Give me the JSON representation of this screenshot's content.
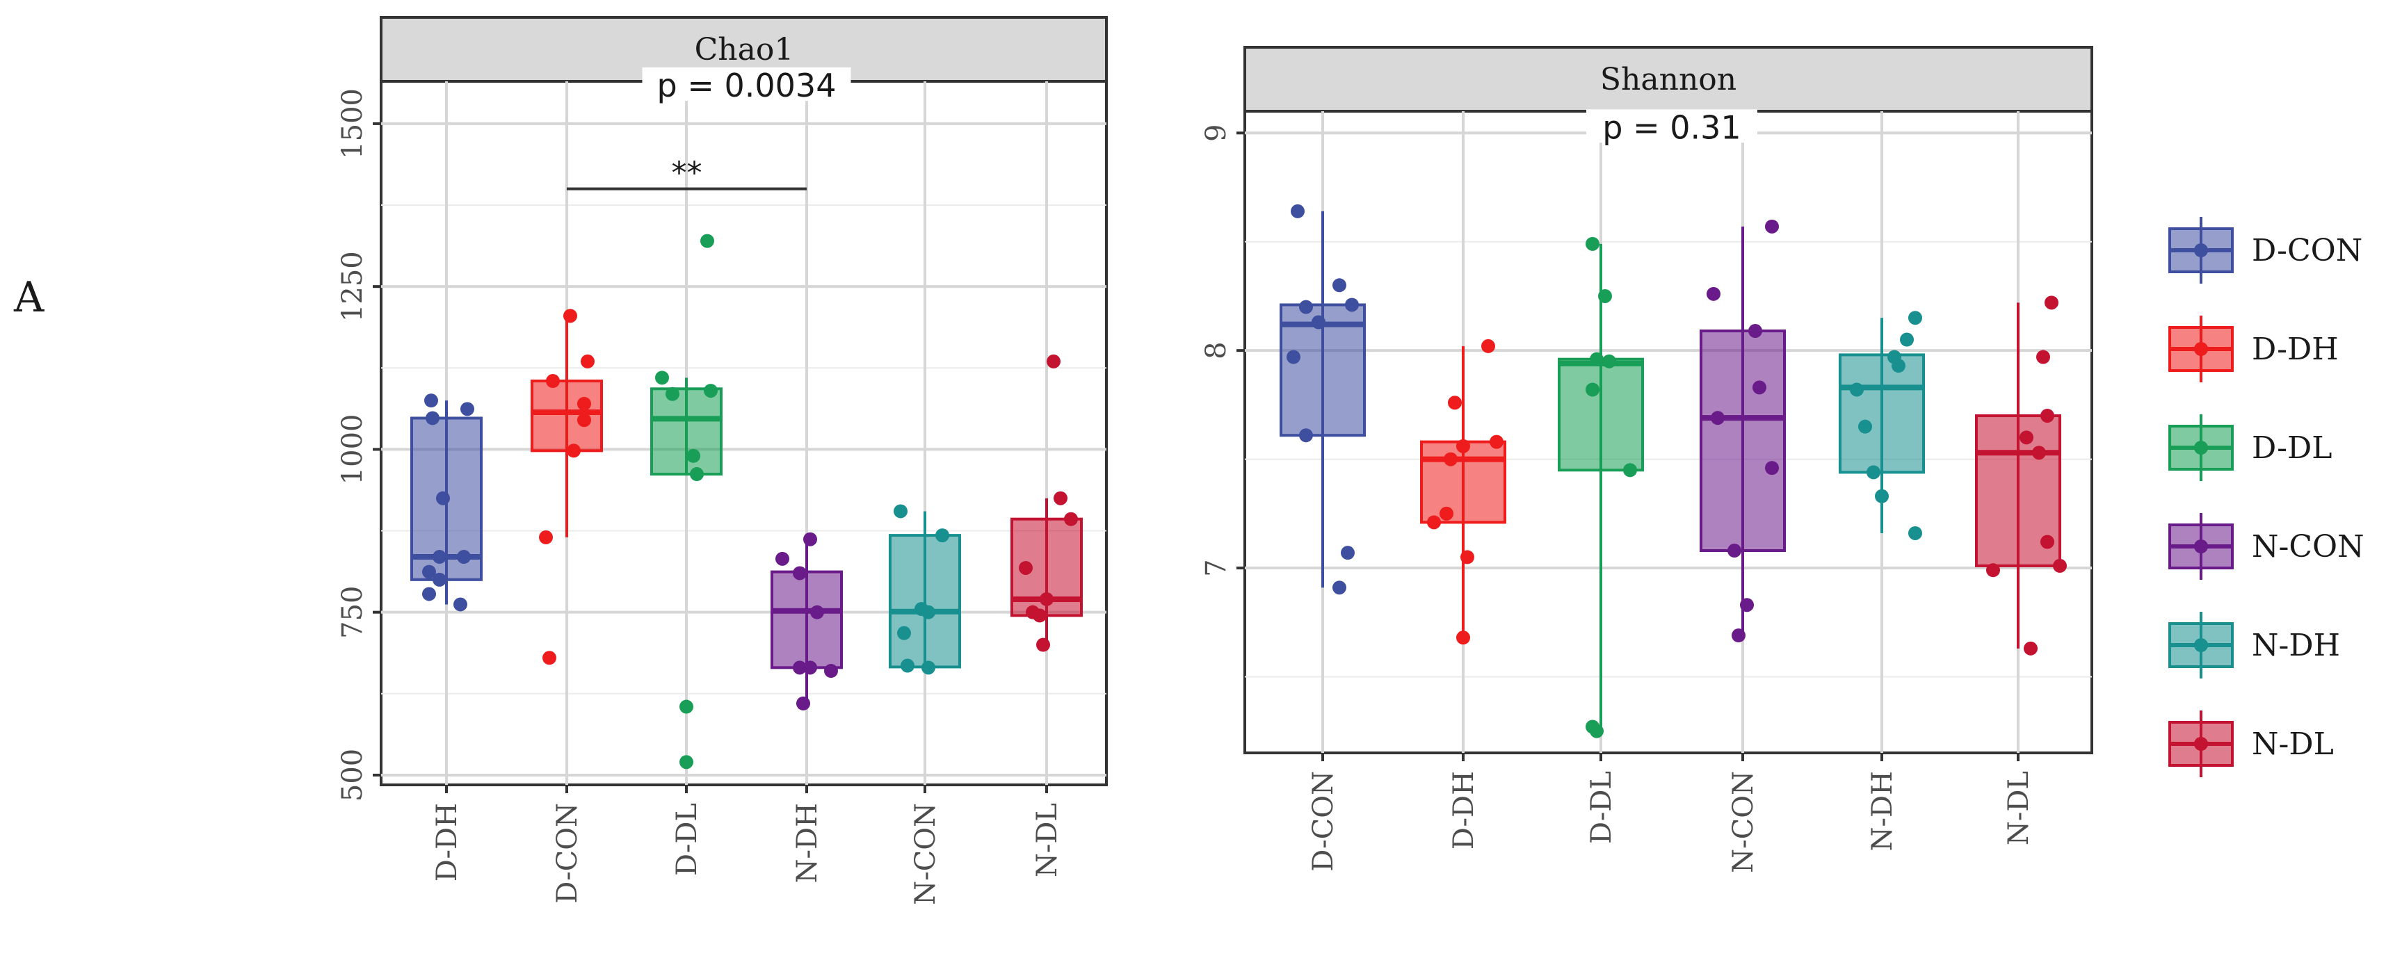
{
  "figure": {
    "panel_label": "A",
    "colors": {
      "D-CON": "#3f4fa0",
      "D-DH": "#ee1c1c",
      "D-DL": "#189e56",
      "N-CON": "#6a1b8a",
      "N-DH": "#17908f",
      "N-DL": "#c41231"
    }
  },
  "chart_data": [
    {
      "type": "boxplot",
      "title": "Chao1",
      "categories": [
        "D-DH",
        "D-CON",
        "D-DL",
        "N-DH",
        "N-CON",
        "N-DL"
      ],
      "category_groups": [
        "D-CON",
        "D-DH",
        "D-DL",
        "N-CON",
        "N-DH",
        "N-DL"
      ],
      "ylim": [
        485,
        1565
      ],
      "yticks": [
        500,
        750,
        1000,
        1250,
        1500
      ],
      "ytick_labels": [
        "500",
        "750",
        "1000",
        "1250",
        "1500"
      ],
      "minor_gridlines": [
        625,
        875,
        1125,
        1375
      ],
      "grid": true,
      "p_value_label": "p = 0.0034",
      "p_value_y": 1550,
      "significance": {
        "from": "D-CON",
        "to": "N-DH",
        "label": "**",
        "y": 1400
      },
      "boxes": [
        {
          "q1": 800,
          "median": 835,
          "q3": 1048,
          "whisker_low": 762,
          "whisker_high": 1075
        },
        {
          "q1": 998,
          "median": 1057,
          "q3": 1105,
          "whisker_low": 865,
          "whisker_high": 1205
        },
        {
          "q1": 962,
          "median": 1047,
          "q3": 1093,
          "whisker_low": 962,
          "whisker_high": 1110
        },
        {
          "q1": 665,
          "median": 752,
          "q3": 812,
          "whisker_low": 610,
          "whisker_high": 862
        },
        {
          "q1": 666,
          "median": 751,
          "q3": 868,
          "whisker_low": 664,
          "whisker_high": 905
        },
        {
          "q1": 745,
          "median": 770,
          "q3": 893,
          "whisker_low": 700,
          "whisker_high": 925
        }
      ],
      "points": [
        [
          {
            "dx": -0.22,
            "y": 1075
          },
          {
            "dx": -0.2,
            "y": 1048
          },
          {
            "dx": 0.3,
            "y": 1062
          },
          {
            "dx": -0.05,
            "y": 925
          },
          {
            "dx": 0.25,
            "y": 835
          },
          {
            "dx": -0.1,
            "y": 835
          },
          {
            "dx": -0.25,
            "y": 812
          },
          {
            "dx": -0.1,
            "y": 800
          },
          {
            "dx": -0.25,
            "y": 778
          },
          {
            "dx": 0.2,
            "y": 762
          }
        ],
        [
          {
            "dx": 0.05,
            "y": 1205
          },
          {
            "dx": 0.3,
            "y": 1135
          },
          {
            "dx": -0.2,
            "y": 1105
          },
          {
            "dx": 0.25,
            "y": 1070
          },
          {
            "dx": 0.25,
            "y": 1045
          },
          {
            "dx": 0.1,
            "y": 998
          },
          {
            "dx": -0.3,
            "y": 865
          },
          {
            "dx": -0.25,
            "y": 680
          }
        ],
        [
          {
            "dx": 0.3,
            "y": 1320
          },
          {
            "dx": -0.35,
            "y": 1110
          },
          {
            "dx": 0.35,
            "y": 1090
          },
          {
            "dx": -0.2,
            "y": 1085
          },
          {
            "dx": 0.1,
            "y": 990
          },
          {
            "dx": 0.15,
            "y": 962
          },
          {
            "dx": 0.0,
            "y": 605
          },
          {
            "dx": 0.0,
            "y": 520
          }
        ],
        [
          {
            "dx": -0.35,
            "y": 832
          },
          {
            "dx": 0.05,
            "y": 862
          },
          {
            "dx": -0.1,
            "y": 810
          },
          {
            "dx": 0.15,
            "y": 750
          },
          {
            "dx": -0.1,
            "y": 665
          },
          {
            "dx": 0.05,
            "y": 665
          },
          {
            "dx": 0.35,
            "y": 660
          },
          {
            "dx": -0.05,
            "y": 610
          }
        ],
        [
          {
            "dx": -0.35,
            "y": 905
          },
          {
            "dx": 0.25,
            "y": 868
          },
          {
            "dx": -0.05,
            "y": 755
          },
          {
            "dx": 0.05,
            "y": 750
          },
          {
            "dx": -0.3,
            "y": 718
          },
          {
            "dx": -0.25,
            "y": 668
          },
          {
            "dx": 0.05,
            "y": 665
          }
        ],
        [
          {
            "dx": 0.1,
            "y": 1135
          },
          {
            "dx": 0.2,
            "y": 925
          },
          {
            "dx": 0.35,
            "y": 893
          },
          {
            "dx": -0.3,
            "y": 818
          },
          {
            "dx": 0.0,
            "y": 770
          },
          {
            "dx": -0.2,
            "y": 750
          },
          {
            "dx": -0.1,
            "y": 745
          },
          {
            "dx": -0.05,
            "y": 700
          }
        ]
      ]
    },
    {
      "type": "boxplot",
      "title": "Shannon",
      "categories": [
        "D-CON",
        "D-DH",
        "D-DL",
        "N-CON",
        "N-DH",
        "N-DL"
      ],
      "category_groups": [
        "D-CON",
        "D-DH",
        "D-DL",
        "N-CON",
        "N-DH",
        "N-DL"
      ],
      "ylim": [
        6.15,
        9.1
      ],
      "yticks": [
        7,
        8,
        9
      ],
      "ytick_labels": [
        "7",
        "8",
        "9"
      ],
      "minor_gridlines": [
        6.5,
        7.5,
        8.5
      ],
      "grid": true,
      "p_value_label": "p = 0.31",
      "p_value_y": 9.0,
      "significance": null,
      "boxes": [
        {
          "q1": 7.61,
          "median": 8.12,
          "q3": 8.21,
          "whisker_low": 6.91,
          "whisker_high": 8.64
        },
        {
          "q1": 7.21,
          "median": 7.5,
          "q3": 7.58,
          "whisker_low": 6.68,
          "whisker_high": 8.02
        },
        {
          "q1": 7.45,
          "median": 7.94,
          "q3": 7.96,
          "whisker_low": 6.25,
          "whisker_high": 8.49
        },
        {
          "q1": 7.08,
          "median": 7.69,
          "q3": 8.09,
          "whisker_low": 6.69,
          "whisker_high": 8.57
        },
        {
          "q1": 7.44,
          "median": 7.83,
          "q3": 7.98,
          "whisker_low": 7.16,
          "whisker_high": 8.15
        },
        {
          "q1": 7.01,
          "median": 7.53,
          "q3": 7.7,
          "whisker_low": 6.63,
          "whisker_high": 8.22
        }
      ],
      "points": [
        [
          {
            "dx": -0.3,
            "y": 8.64
          },
          {
            "dx": 0.2,
            "y": 8.3
          },
          {
            "dx": 0.35,
            "y": 8.21
          },
          {
            "dx": -0.2,
            "y": 8.2
          },
          {
            "dx": -0.05,
            "y": 8.13
          },
          {
            "dx": -0.35,
            "y": 7.97
          },
          {
            "dx": -0.2,
            "y": 7.61
          },
          {
            "dx": 0.3,
            "y": 7.07
          },
          {
            "dx": 0.2,
            "y": 6.91
          }
        ],
        [
          {
            "dx": 0.3,
            "y": 8.02
          },
          {
            "dx": -0.1,
            "y": 7.76
          },
          {
            "dx": 0.0,
            "y": 7.56
          },
          {
            "dx": 0.4,
            "y": 7.58
          },
          {
            "dx": -0.15,
            "y": 7.5
          },
          {
            "dx": -0.2,
            "y": 7.25
          },
          {
            "dx": -0.35,
            "y": 7.21
          },
          {
            "dx": 0.05,
            "y": 7.05
          },
          {
            "dx": 0.0,
            "y": 6.68
          }
        ],
        [
          {
            "dx": -0.1,
            "y": 8.49
          },
          {
            "dx": 0.05,
            "y": 8.25
          },
          {
            "dx": -0.05,
            "y": 7.96
          },
          {
            "dx": 0.1,
            "y": 7.95
          },
          {
            "dx": -0.1,
            "y": 7.82
          },
          {
            "dx": 0.35,
            "y": 7.45
          },
          {
            "dx": -0.1,
            "y": 6.27
          },
          {
            "dx": -0.05,
            "y": 6.25
          }
        ],
        [
          {
            "dx": 0.35,
            "y": 8.57
          },
          {
            "dx": -0.35,
            "y": 8.26
          },
          {
            "dx": 0.15,
            "y": 8.09
          },
          {
            "dx": 0.2,
            "y": 7.83
          },
          {
            "dx": -0.3,
            "y": 7.69
          },
          {
            "dx": 0.35,
            "y": 7.46
          },
          {
            "dx": -0.1,
            "y": 7.08
          },
          {
            "dx": 0.05,
            "y": 6.83
          },
          {
            "dx": -0.05,
            "y": 6.69
          }
        ],
        [
          {
            "dx": 0.4,
            "y": 8.15
          },
          {
            "dx": 0.3,
            "y": 8.05
          },
          {
            "dx": 0.15,
            "y": 7.97
          },
          {
            "dx": 0.2,
            "y": 7.93
          },
          {
            "dx": -0.3,
            "y": 7.82
          },
          {
            "dx": -0.2,
            "y": 7.65
          },
          {
            "dx": -0.1,
            "y": 7.44
          },
          {
            "dx": 0.0,
            "y": 7.33
          },
          {
            "dx": 0.4,
            "y": 7.16
          }
        ],
        [
          {
            "dx": 0.4,
            "y": 8.22
          },
          {
            "dx": 0.3,
            "y": 7.97
          },
          {
            "dx": 0.35,
            "y": 7.7
          },
          {
            "dx": 0.1,
            "y": 7.6
          },
          {
            "dx": 0.25,
            "y": 7.53
          },
          {
            "dx": 0.35,
            "y": 7.12
          },
          {
            "dx": -0.3,
            "y": 6.99
          },
          {
            "dx": 0.5,
            "y": 7.01
          },
          {
            "dx": 0.15,
            "y": 6.63
          }
        ]
      ]
    }
  ],
  "legend": {
    "entries": [
      "D-CON",
      "D-DH",
      "D-DL",
      "N-CON",
      "N-DH",
      "N-DL"
    ]
  }
}
